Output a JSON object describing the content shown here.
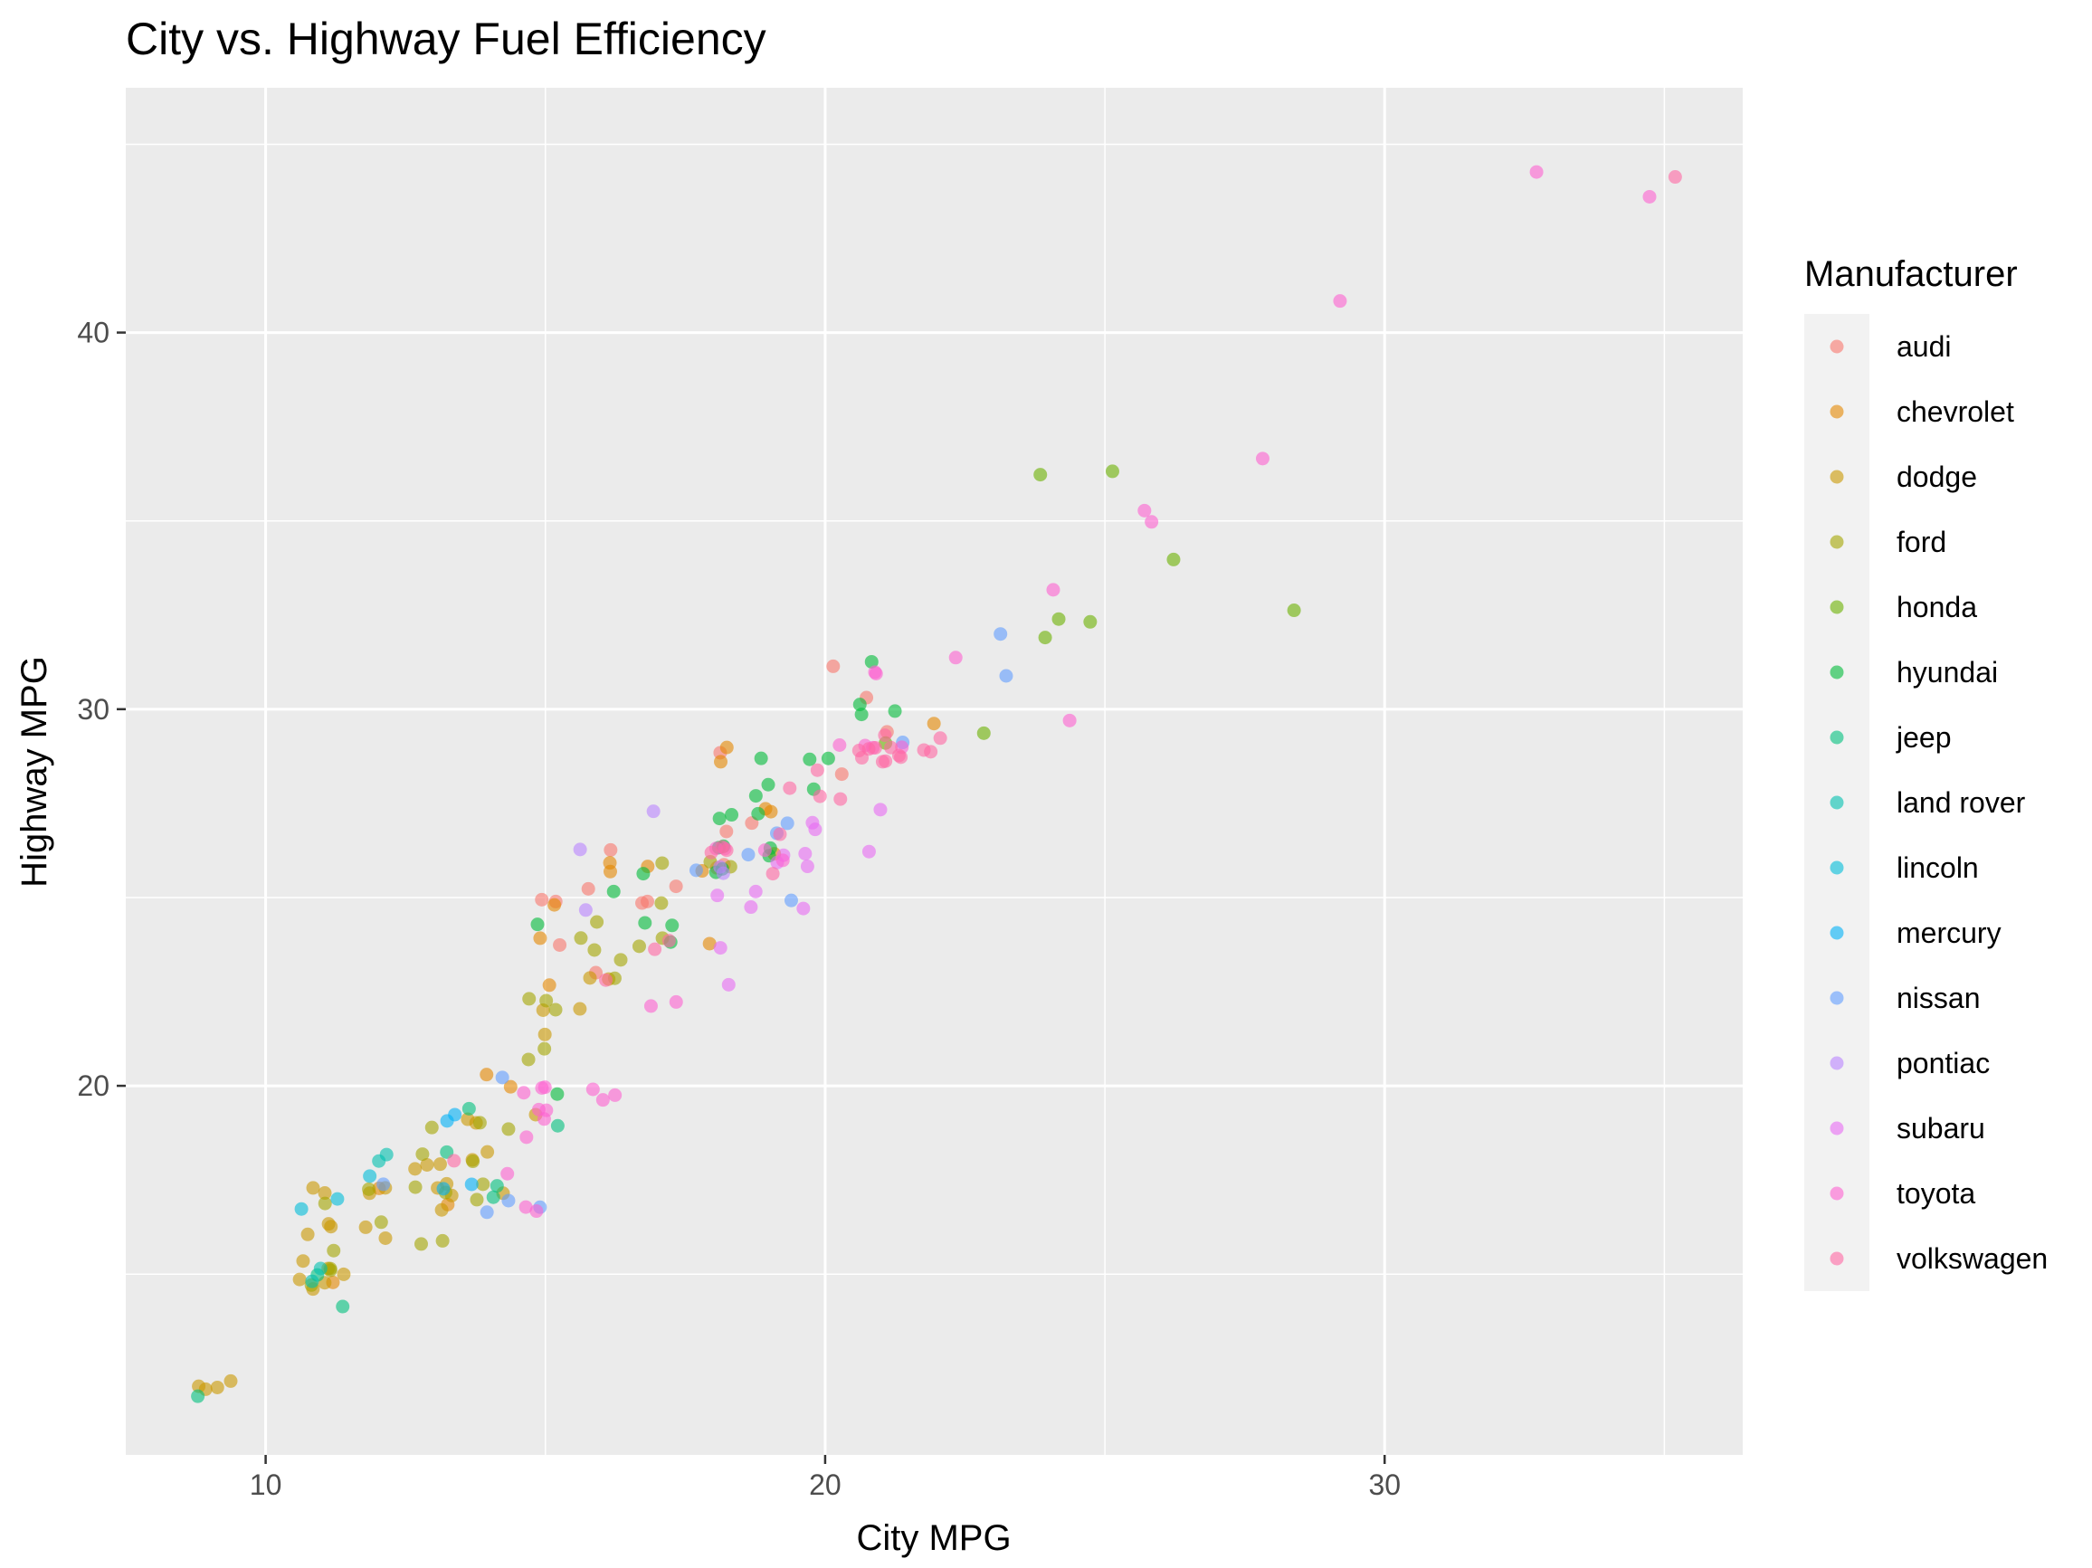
{
  "chart_data": {
    "type": "scatter",
    "title": "City vs. Highway Fuel Efficiency",
    "xlabel": "City MPG",
    "ylabel": "Highway MPG",
    "xlim": [
      7.5,
      36.4
    ],
    "ylim": [
      10.2,
      46.5
    ],
    "x_ticks": [
      10,
      20,
      30
    ],
    "y_ticks": [
      20,
      30,
      40
    ],
    "grid": true,
    "legend_title": "Manufacturer",
    "legend_position": "right",
    "point_opacity": 0.6,
    "series": [
      {
        "name": "audi",
        "color": "#F8766D",
        "points": [
          [
            18,
            29
          ],
          [
            21,
            29
          ],
          [
            20,
            31
          ],
          [
            21,
            30
          ],
          [
            16,
            26
          ],
          [
            18,
            26
          ],
          [
            18,
            27
          ],
          [
            18,
            26
          ],
          [
            16,
            25
          ],
          [
            20,
            28
          ],
          [
            19,
            27
          ],
          [
            15,
            25
          ],
          [
            17,
            25
          ],
          [
            17,
            25
          ],
          [
            15,
            25
          ],
          [
            15,
            24
          ],
          [
            17,
            25
          ],
          [
            16,
            23
          ]
        ]
      },
      {
        "name": "chevrolet",
        "color": "#E58700",
        "points": [
          [
            14,
            20
          ],
          [
            11,
            15
          ],
          [
            14,
            20
          ],
          [
            13,
            17
          ],
          [
            12,
            17
          ],
          [
            16,
            26
          ],
          [
            15,
            23
          ],
          [
            16,
            26
          ],
          [
            15,
            25
          ],
          [
            15,
            24
          ],
          [
            19,
            27
          ],
          [
            22,
            30
          ],
          [
            18,
            26
          ],
          [
            18,
            29
          ],
          [
            17,
            26
          ],
          [
            18,
            24
          ],
          [
            18,
            29
          ],
          [
            19,
            27
          ],
          [
            19,
            26
          ]
        ]
      },
      {
        "name": "dodge",
        "color": "#C99800",
        "points": [
          [
            16,
            22
          ],
          [
            15,
            22
          ],
          [
            16,
            23
          ],
          [
            15,
            21
          ],
          [
            14,
            19
          ],
          [
            13,
            17
          ],
          [
            14,
            19
          ],
          [
            13,
            18
          ],
          [
            14,
            17
          ],
          [
            15,
            19
          ],
          [
            11,
            15
          ],
          [
            11,
            16
          ],
          [
            12,
            17
          ],
          [
            11,
            17
          ],
          [
            11,
            15
          ],
          [
            13,
            18
          ],
          [
            14,
            18
          ],
          [
            11,
            17
          ],
          [
            12,
            16
          ],
          [
            9,
            12
          ],
          [
            11,
            15
          ],
          [
            11,
            16
          ],
          [
            13,
            17
          ],
          [
            13,
            17
          ],
          [
            11,
            15
          ],
          [
            9,
            12
          ],
          [
            11,
            15
          ],
          [
            9,
            12
          ],
          [
            11,
            16
          ],
          [
            13,
            17
          ],
          [
            11,
            15
          ],
          [
            12,
            16
          ],
          [
            12,
            17
          ],
          [
            13,
            18
          ],
          [
            16,
            23
          ],
          [
            14,
            18
          ],
          [
            9,
            12
          ]
        ]
      },
      {
        "name": "ford",
        "color": "#A3A500",
        "points": [
          [
            15,
            22
          ],
          [
            16,
            23
          ],
          [
            15,
            21
          ],
          [
            15,
            22
          ],
          [
            16,
            24
          ],
          [
            17,
            26
          ],
          [
            17,
            24
          ],
          [
            15,
            21
          ],
          [
            13,
            17
          ],
          [
            13,
            16
          ],
          [
            14,
            17
          ],
          [
            14,
            19
          ],
          [
            13,
            17
          ],
          [
            14,
            17
          ],
          [
            13,
            16
          ],
          [
            12,
            16
          ],
          [
            13,
            18
          ],
          [
            12,
            17
          ],
          [
            14,
            19
          ],
          [
            15,
            22
          ],
          [
            11,
            15
          ],
          [
            11,
            15
          ],
          [
            11,
            16
          ],
          [
            14,
            18
          ],
          [
            13,
            19
          ],
          [
            11,
            15
          ],
          [
            11,
            17
          ],
          [
            18,
            26
          ],
          [
            17,
            25
          ],
          [
            16,
            23
          ],
          [
            17,
            24
          ],
          [
            18,
            26
          ],
          [
            16,
            24
          ],
          [
            16,
            24
          ]
        ]
      },
      {
        "name": "honda",
        "color": "#6BB100",
        "points": [
          [
            28,
            33
          ],
          [
            24,
            32
          ],
          [
            25,
            32
          ],
          [
            23,
            29
          ],
          [
            24,
            32
          ],
          [
            26,
            34
          ],
          [
            25,
            36
          ],
          [
            24,
            36
          ],
          [
            21,
            29
          ]
        ]
      },
      {
        "name": "hyundai",
        "color": "#00BA38",
        "points": [
          [
            18,
            26
          ],
          [
            18,
            27
          ],
          [
            21,
            30
          ],
          [
            21,
            31
          ],
          [
            18,
            26
          ],
          [
            19,
            26
          ],
          [
            19,
            28
          ],
          [
            17,
            24
          ],
          [
            17,
            24
          ],
          [
            15,
            24
          ],
          [
            16,
            25
          ],
          [
            18,
            26
          ],
          [
            17,
            24
          ],
          [
            15,
            20
          ],
          [
            20,
            29
          ],
          [
            20,
            28
          ],
          [
            19,
            28
          ],
          [
            21,
            30
          ],
          [
            18,
            26
          ],
          [
            17,
            26
          ],
          [
            19,
            27
          ],
          [
            19,
            26
          ],
          [
            20,
            29
          ],
          [
            21,
            30
          ],
          [
            18,
            27
          ],
          [
            19,
            29
          ]
        ]
      },
      {
        "name": "jeep",
        "color": "#00BF7D",
        "points": [
          [
            14,
            17
          ],
          [
            15,
            19
          ],
          [
            14,
            19
          ],
          [
            13,
            18
          ],
          [
            9,
            12
          ],
          [
            14,
            17
          ],
          [
            11,
            15
          ],
          [
            11,
            14
          ]
        ]
      },
      {
        "name": "land rover",
        "color": "#00C0AF",
        "points": [
          [
            11,
            15
          ],
          [
            12,
            18
          ],
          [
            12,
            18
          ],
          [
            11,
            15
          ]
        ]
      },
      {
        "name": "lincoln",
        "color": "#00BCD8",
        "points": [
          [
            11,
            17
          ],
          [
            11,
            17
          ],
          [
            12,
            18
          ]
        ]
      },
      {
        "name": "mercury",
        "color": "#00B0F6",
        "points": [
          [
            14,
            17
          ],
          [
            13,
            19
          ],
          [
            13,
            19
          ],
          [
            13,
            17
          ]
        ]
      },
      {
        "name": "nissan",
        "color": "#619CFF",
        "points": [
          [
            21,
            29
          ],
          [
            19,
            27
          ],
          [
            23,
            31
          ],
          [
            23,
            32
          ],
          [
            19,
            27
          ],
          [
            19,
            26
          ],
          [
            18,
            26
          ],
          [
            19,
            25
          ],
          [
            14,
            17
          ],
          [
            14,
            17
          ],
          [
            12,
            17
          ],
          [
            14,
            20
          ],
          [
            15,
            17
          ]
        ]
      },
      {
        "name": "pontiac",
        "color": "#B983FF",
        "points": [
          [
            18,
            26
          ],
          [
            16,
            26
          ],
          [
            17,
            27
          ],
          [
            18,
            26
          ],
          [
            16,
            25
          ]
        ]
      },
      {
        "name": "subaru",
        "color": "#E76BF3",
        "points": [
          [
            18,
            25
          ],
          [
            18,
            24
          ],
          [
            20,
            27
          ],
          [
            19,
            25
          ],
          [
            20,
            26
          ],
          [
            18,
            23
          ],
          [
            21,
            27
          ],
          [
            20,
            26
          ],
          [
            19,
            26
          ],
          [
            20,
            25
          ],
          [
            19,
            25
          ],
          [
            19,
            26
          ],
          [
            20,
            27
          ],
          [
            21,
            26
          ]
        ]
      },
      {
        "name": "toyota",
        "color": "#FD61D1",
        "points": [
          [
            15,
            20
          ],
          [
            16,
            20
          ],
          [
            15,
            20
          ],
          [
            15,
            19
          ],
          [
            14,
            18
          ],
          [
            15,
            19
          ],
          [
            16,
            20
          ],
          [
            15,
            17
          ],
          [
            17,
            22
          ],
          [
            15,
            19
          ],
          [
            15,
            17
          ],
          [
            17,
            22
          ],
          [
            15,
            20
          ],
          [
            15,
            19
          ],
          [
            16,
            20
          ],
          [
            18,
            26
          ],
          [
            18,
            26
          ],
          [
            21,
            31
          ],
          [
            21,
            29
          ],
          [
            21,
            29
          ],
          [
            19,
            26
          ],
          [
            19,
            26
          ],
          [
            21,
            29
          ],
          [
            21,
            31
          ],
          [
            20,
            29
          ],
          [
            22,
            31
          ],
          [
            24,
            30
          ],
          [
            24,
            33
          ],
          [
            26,
            35
          ],
          [
            26,
            35
          ],
          [
            28,
            37
          ],
          [
            33,
            44
          ],
          [
            35,
            44
          ],
          [
            29,
            41
          ]
        ]
      },
      {
        "name": "volkswagen",
        "color": "#FF67A4",
        "points": [
          [
            21,
            29
          ],
          [
            19,
            28
          ],
          [
            21,
            29
          ],
          [
            22,
            29
          ],
          [
            21,
            29
          ],
          [
            35,
            44
          ],
          [
            18,
            26
          ],
          [
            17,
            24
          ],
          [
            19,
            27
          ],
          [
            16,
            23
          ],
          [
            17,
            24
          ],
          [
            13,
            18
          ],
          [
            18,
            26
          ],
          [
            18,
            26
          ],
          [
            19,
            26
          ],
          [
            21,
            29
          ],
          [
            21,
            29
          ],
          [
            20,
            28
          ],
          [
            21,
            29
          ],
          [
            22,
            29
          ],
          [
            21,
            29
          ],
          [
            20,
            28
          ],
          [
            21,
            29
          ],
          [
            22,
            29
          ],
          [
            21,
            29
          ],
          [
            20,
            28
          ],
          [
            21,
            29
          ]
        ]
      }
    ]
  }
}
